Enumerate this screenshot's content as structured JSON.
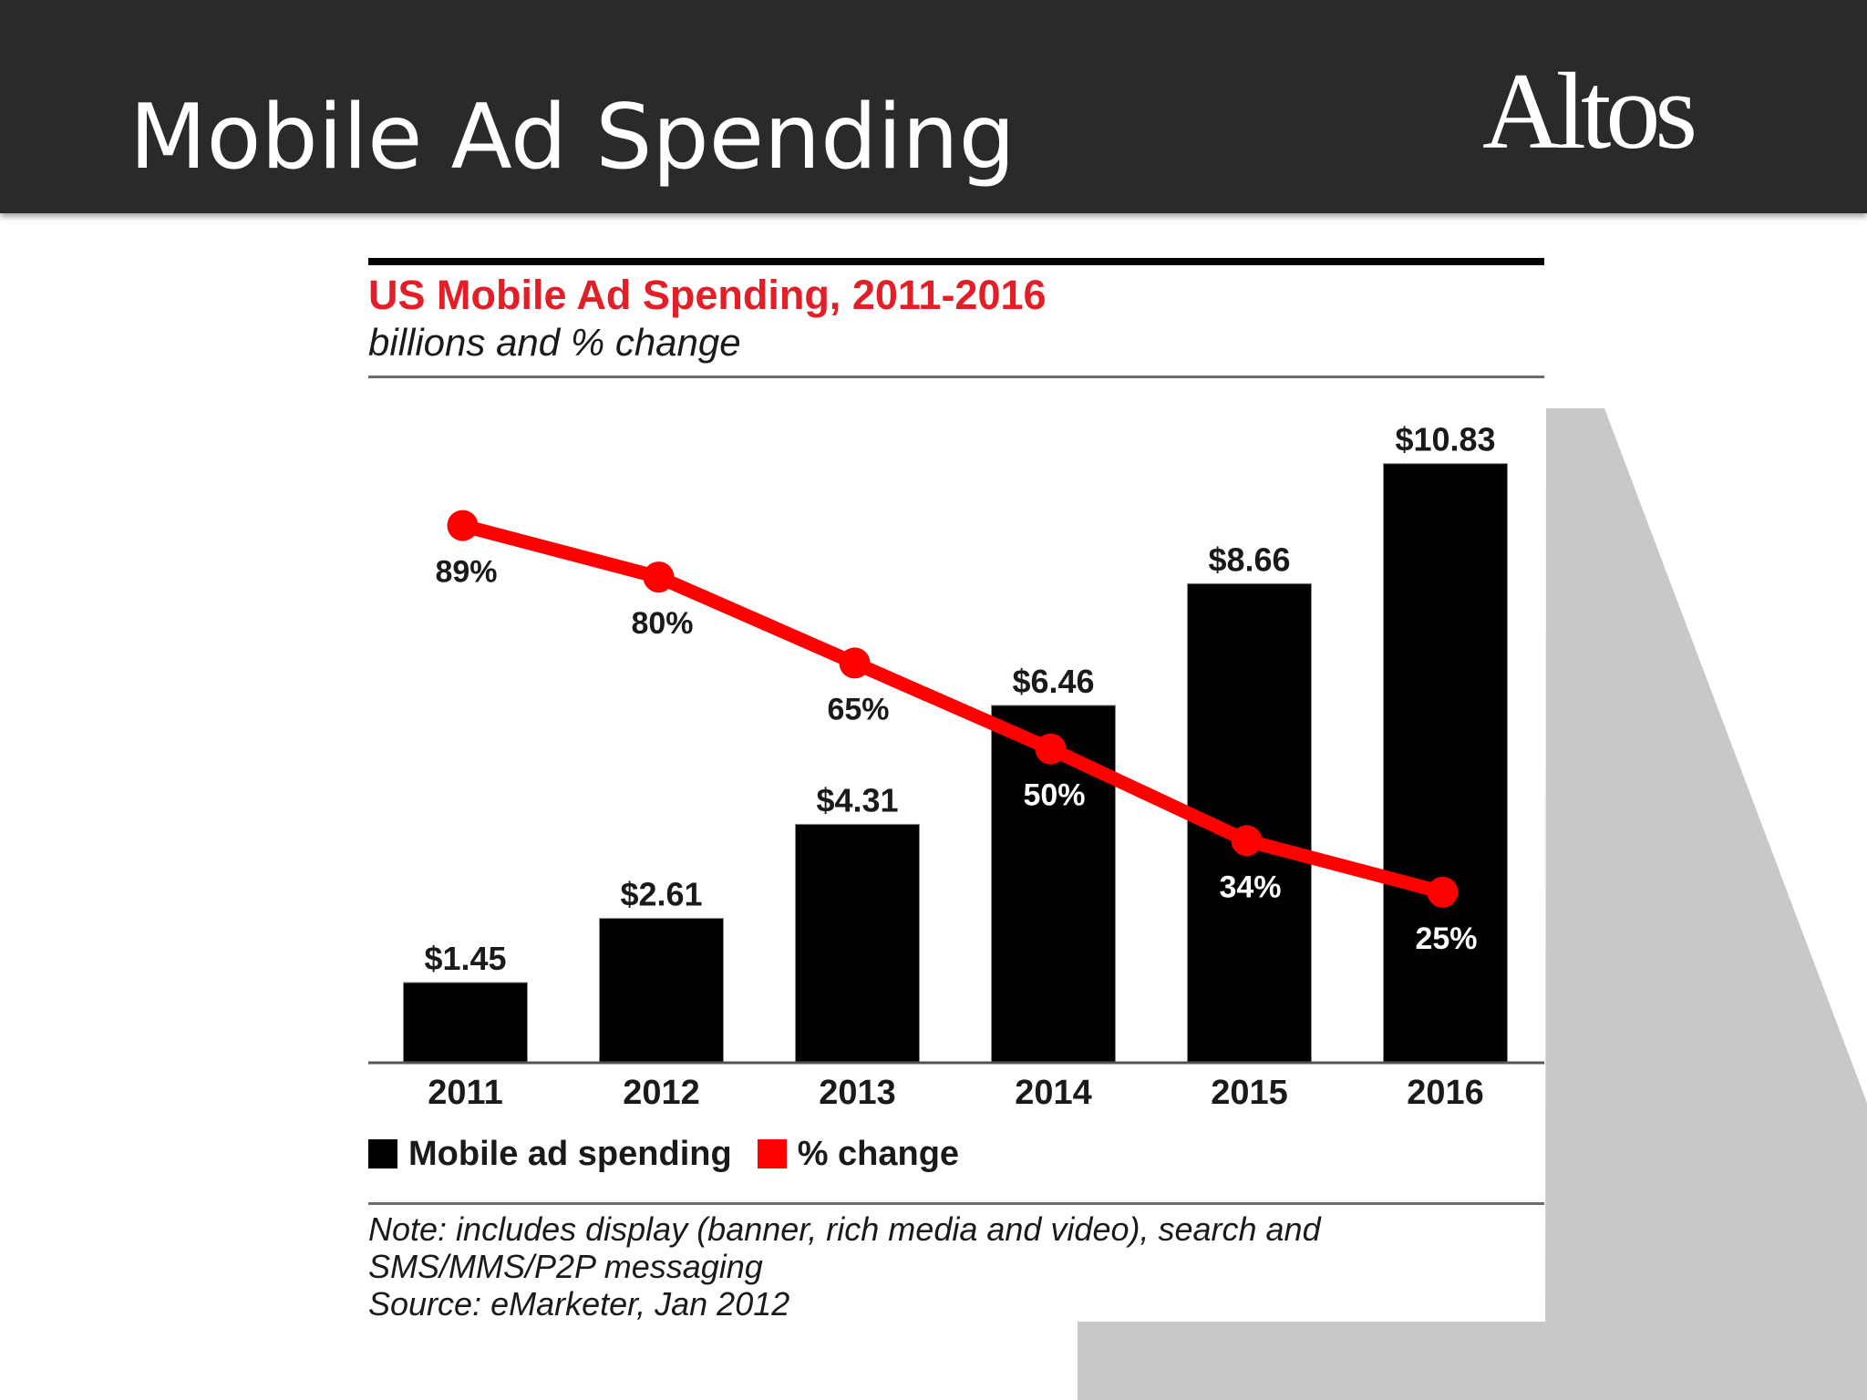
{
  "slide": {
    "title": "Mobile Ad Spending",
    "logo_text": "Altos"
  },
  "figure": {
    "title": "US Mobile Ad Spending, 2011-2016",
    "subtitle": "billions and % change",
    "note_lines": [
      "Note: includes display (banner, rich media and video), search and",
      "SMS/MMS/P2P messaging",
      "Source: eMarketer, Jan 2012"
    ]
  },
  "colors": {
    "bar": "#000000",
    "line": "#ff0000",
    "title_red": "#e41e26",
    "watermark": "#c8c8c8"
  },
  "chart_data": {
    "type": "bar",
    "categories": [
      "2011",
      "2012",
      "2013",
      "2014",
      "2015",
      "2016"
    ],
    "series": [
      {
        "name": "Mobile ad spending",
        "type": "bar",
        "values": [
          1.45,
          2.61,
          4.31,
          6.46,
          8.66,
          10.83
        ],
        "labels": [
          "$1.45",
          "$2.61",
          "$4.31",
          "$6.46",
          "$8.66",
          "$10.83"
        ]
      },
      {
        "name": "% change",
        "type": "line",
        "values": [
          89,
          80,
          65,
          50,
          34,
          25
        ],
        "labels": [
          "89%",
          "80%",
          "65%",
          "50%",
          "34%",
          "25%"
        ]
      }
    ],
    "ylim": [
      0,
      11.5
    ],
    "y2lim": [
      0,
      112
    ],
    "grid": false,
    "legend_placement": "bottom-left"
  }
}
